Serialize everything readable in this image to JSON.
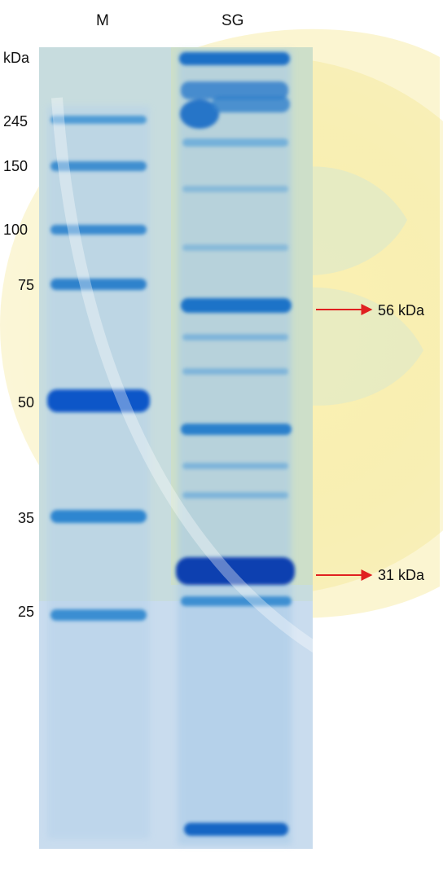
{
  "lane_labels": {
    "marker": "M",
    "sample": "SG"
  },
  "unit_label": "kDa",
  "marker_sizes": [
    "245",
    "150",
    "100",
    "75",
    "50",
    "35",
    "25"
  ],
  "annotations": [
    "56 kDa",
    "31 kDa"
  ],
  "colors": {
    "gel_background": "#c9dcee",
    "band": "#1f78c8",
    "band_dark": "#0b3fb0",
    "arrow": "#e02020",
    "watermark": "#d9c45a"
  }
}
